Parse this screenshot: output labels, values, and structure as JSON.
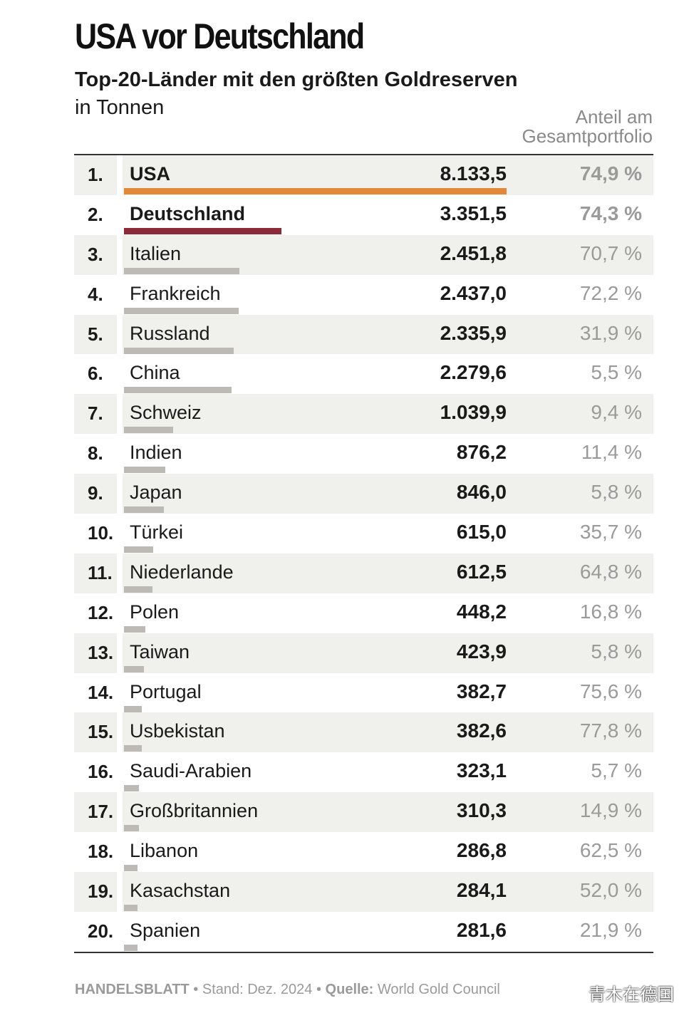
{
  "chart_data": {
    "type": "bar",
    "title": "USA vor Deutschland",
    "subtitle": "Top-20-Länder mit den größten Goldreserven",
    "unit": "in Tonnen",
    "share_header": "Anteil am Gesamtportfolio",
    "rows": [
      {
        "rank": "1.",
        "country": "USA",
        "value": 8133.5,
        "value_label": "8.133,5",
        "share": "74,9 %",
        "highlight": true,
        "color": "#e0893a"
      },
      {
        "rank": "2.",
        "country": "Deutschland",
        "value": 3351.5,
        "value_label": "3.351,5",
        "share": "74,3 %",
        "highlight": true,
        "color": "#8b2a38"
      },
      {
        "rank": "3.",
        "country": "Italien",
        "value": 2451.8,
        "value_label": "2.451,8",
        "share": "70,7 %",
        "highlight": false,
        "color": "#bdb9b4"
      },
      {
        "rank": "4.",
        "country": "Frankreich",
        "value": 2437.0,
        "value_label": "2.437,0",
        "share": "72,2 %",
        "highlight": false,
        "color": "#bdb9b4"
      },
      {
        "rank": "5.",
        "country": "Russland",
        "value": 2335.9,
        "value_label": "2.335,9",
        "share": "31,9 %",
        "highlight": false,
        "color": "#bdb9b4"
      },
      {
        "rank": "6.",
        "country": "China",
        "value": 2279.6,
        "value_label": "2.279,6",
        "share": "5,5 %",
        "highlight": false,
        "color": "#bdb9b4"
      },
      {
        "rank": "7.",
        "country": "Schweiz",
        "value": 1039.9,
        "value_label": "1.039,9",
        "share": "9,4 %",
        "highlight": false,
        "color": "#bdb9b4"
      },
      {
        "rank": "8.",
        "country": "Indien",
        "value": 876.2,
        "value_label": "876,2",
        "share": "11,4 %",
        "highlight": false,
        "color": "#bdb9b4"
      },
      {
        "rank": "9.",
        "country": "Japan",
        "value": 846.0,
        "value_label": "846,0",
        "share": "5,8 %",
        "highlight": false,
        "color": "#bdb9b4"
      },
      {
        "rank": "10.",
        "country": "Türkei",
        "value": 615.0,
        "value_label": "615,0",
        "share": "35,7 %",
        "highlight": false,
        "color": "#bdb9b4"
      },
      {
        "rank": "11.",
        "country": "Niederlande",
        "value": 612.5,
        "value_label": "612,5",
        "share": "64,8 %",
        "highlight": false,
        "color": "#bdb9b4"
      },
      {
        "rank": "12.",
        "country": "Polen",
        "value": 448.2,
        "value_label": "448,2",
        "share": "16,8 %",
        "highlight": false,
        "color": "#bdb9b4"
      },
      {
        "rank": "13.",
        "country": "Taiwan",
        "value": 423.9,
        "value_label": "423,9",
        "share": "5,8 %",
        "highlight": false,
        "color": "#bdb9b4"
      },
      {
        "rank": "14.",
        "country": "Portugal",
        "value": 382.7,
        "value_label": "382,7",
        "share": "75,6 %",
        "highlight": false,
        "color": "#bdb9b4"
      },
      {
        "rank": "15.",
        "country": "Usbekistan",
        "value": 382.6,
        "value_label": "382,6",
        "share": "77,8 %",
        "highlight": false,
        "color": "#bdb9b4"
      },
      {
        "rank": "16.",
        "country": "Saudi-Arabien",
        "value": 323.1,
        "value_label": "323,1",
        "share": "5,7 %",
        "highlight": false,
        "color": "#bdb9b4"
      },
      {
        "rank": "17.",
        "country": "Großbritannien",
        "value": 310.3,
        "value_label": "310,3",
        "share": "14,9 %",
        "highlight": false,
        "color": "#bdb9b4"
      },
      {
        "rank": "18.",
        "country": "Libanon",
        "value": 286.8,
        "value_label": "286,8",
        "share": "62,5 %",
        "highlight": false,
        "color": "#bdb9b4"
      },
      {
        "rank": "19.",
        "country": "Kasachstan",
        "value": 284.1,
        "value_label": "284,1",
        "share": "52,0 %",
        "highlight": false,
        "color": "#bdb9b4"
      },
      {
        "rank": "20.",
        "country": "Spanien",
        "value": 281.6,
        "value_label": "281,6",
        "share": "21,9 %",
        "highlight": false,
        "color": "#bdb9b4"
      }
    ]
  },
  "footer": {
    "publisher": "HANDELSBLATT",
    "sep1": " • ",
    "stand": "Stand: Dez. 2024",
    "sep2": " • ",
    "source_label": "Quelle:",
    "source": " World Gold Council"
  },
  "watermark": "青木在德国"
}
